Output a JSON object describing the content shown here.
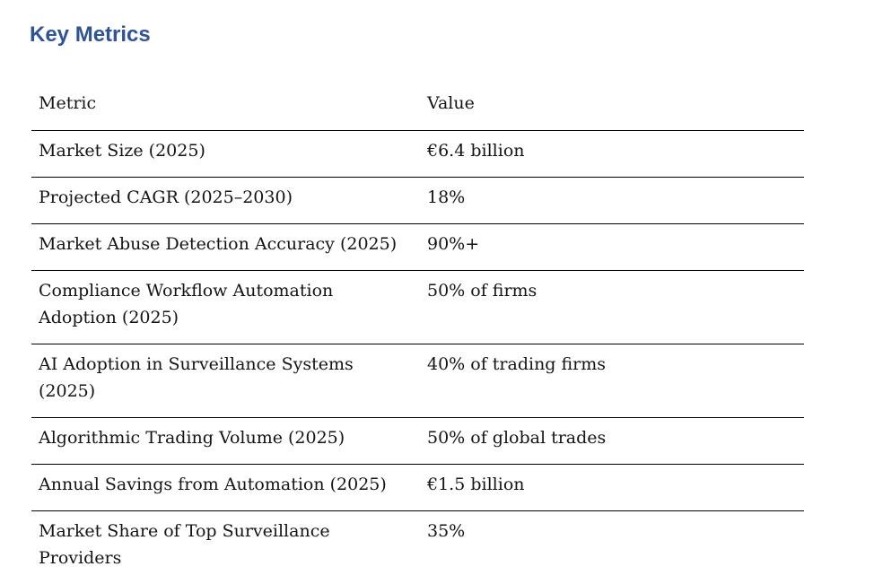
{
  "page": {
    "title": "Key Metrics"
  },
  "theme": {
    "title_color": "#2F5496",
    "rule_color": "#000000",
    "text_color": "#141414",
    "page_bg": "#ffffff"
  },
  "table": {
    "columns": [
      "Metric",
      "Value"
    ],
    "rows": [
      {
        "metric": "Market Size (2025)",
        "value": "€6.4 billion"
      },
      {
        "metric": "Projected CAGR (2025–2030)",
        "value": "18%"
      },
      {
        "metric": "Market Abuse Detection Accuracy (2025)",
        "value": "90%+"
      },
      {
        "metric": "Compliance Workflow Automation Adoption (2025)",
        "value": "50% of firms"
      },
      {
        "metric": "AI Adoption in Surveillance Systems (2025)",
        "value": "40% of trading firms"
      },
      {
        "metric": "Algorithmic Trading Volume (2025)",
        "value": "50% of global trades"
      },
      {
        "metric": "Annual Savings from Automation (2025)",
        "value": "€1.5 billion"
      },
      {
        "metric": "Market Share of Top Surveillance Providers",
        "value": "35%"
      }
    ]
  }
}
